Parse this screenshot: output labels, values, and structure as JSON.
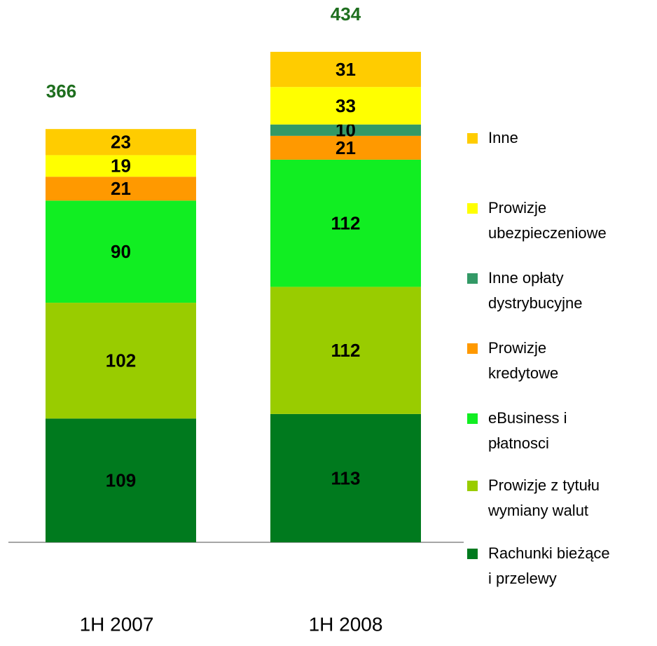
{
  "chart_data": {
    "type": "stacked_bar",
    "categories": [
      "1H 2007",
      "1H 2008"
    ],
    "series": [
      {
        "name": "Rachunki bieżące\ni przelewy",
        "color": "#007a1e",
        "values": [
          109,
          113
        ]
      },
      {
        "name": "Prowizje z tytułu\nwymiany walut",
        "color": "#99cc00",
        "values": [
          102,
          112
        ]
      },
      {
        "name": "eBusiness i\npłatnosci",
        "color": "#11ee22",
        "values": [
          90,
          112
        ]
      },
      {
        "name": "Prowizje\nkredytowe",
        "color": "#ff9900",
        "values": [
          21,
          21
        ]
      },
      {
        "name": "Inne opłaty\ndystrybucyjne",
        "color": "#339966",
        "values": [
          null,
          10
        ]
      },
      {
        "name": "Prowizje\nubezpieczeniowe",
        "color": "#ffff00",
        "values": [
          19,
          33
        ]
      },
      {
        "name": "Inne",
        "color": "#ffcc00",
        "values": [
          23,
          31
        ]
      }
    ],
    "totals": [
      366,
      434
    ],
    "ylim": [
      0,
      440
    ]
  }
}
